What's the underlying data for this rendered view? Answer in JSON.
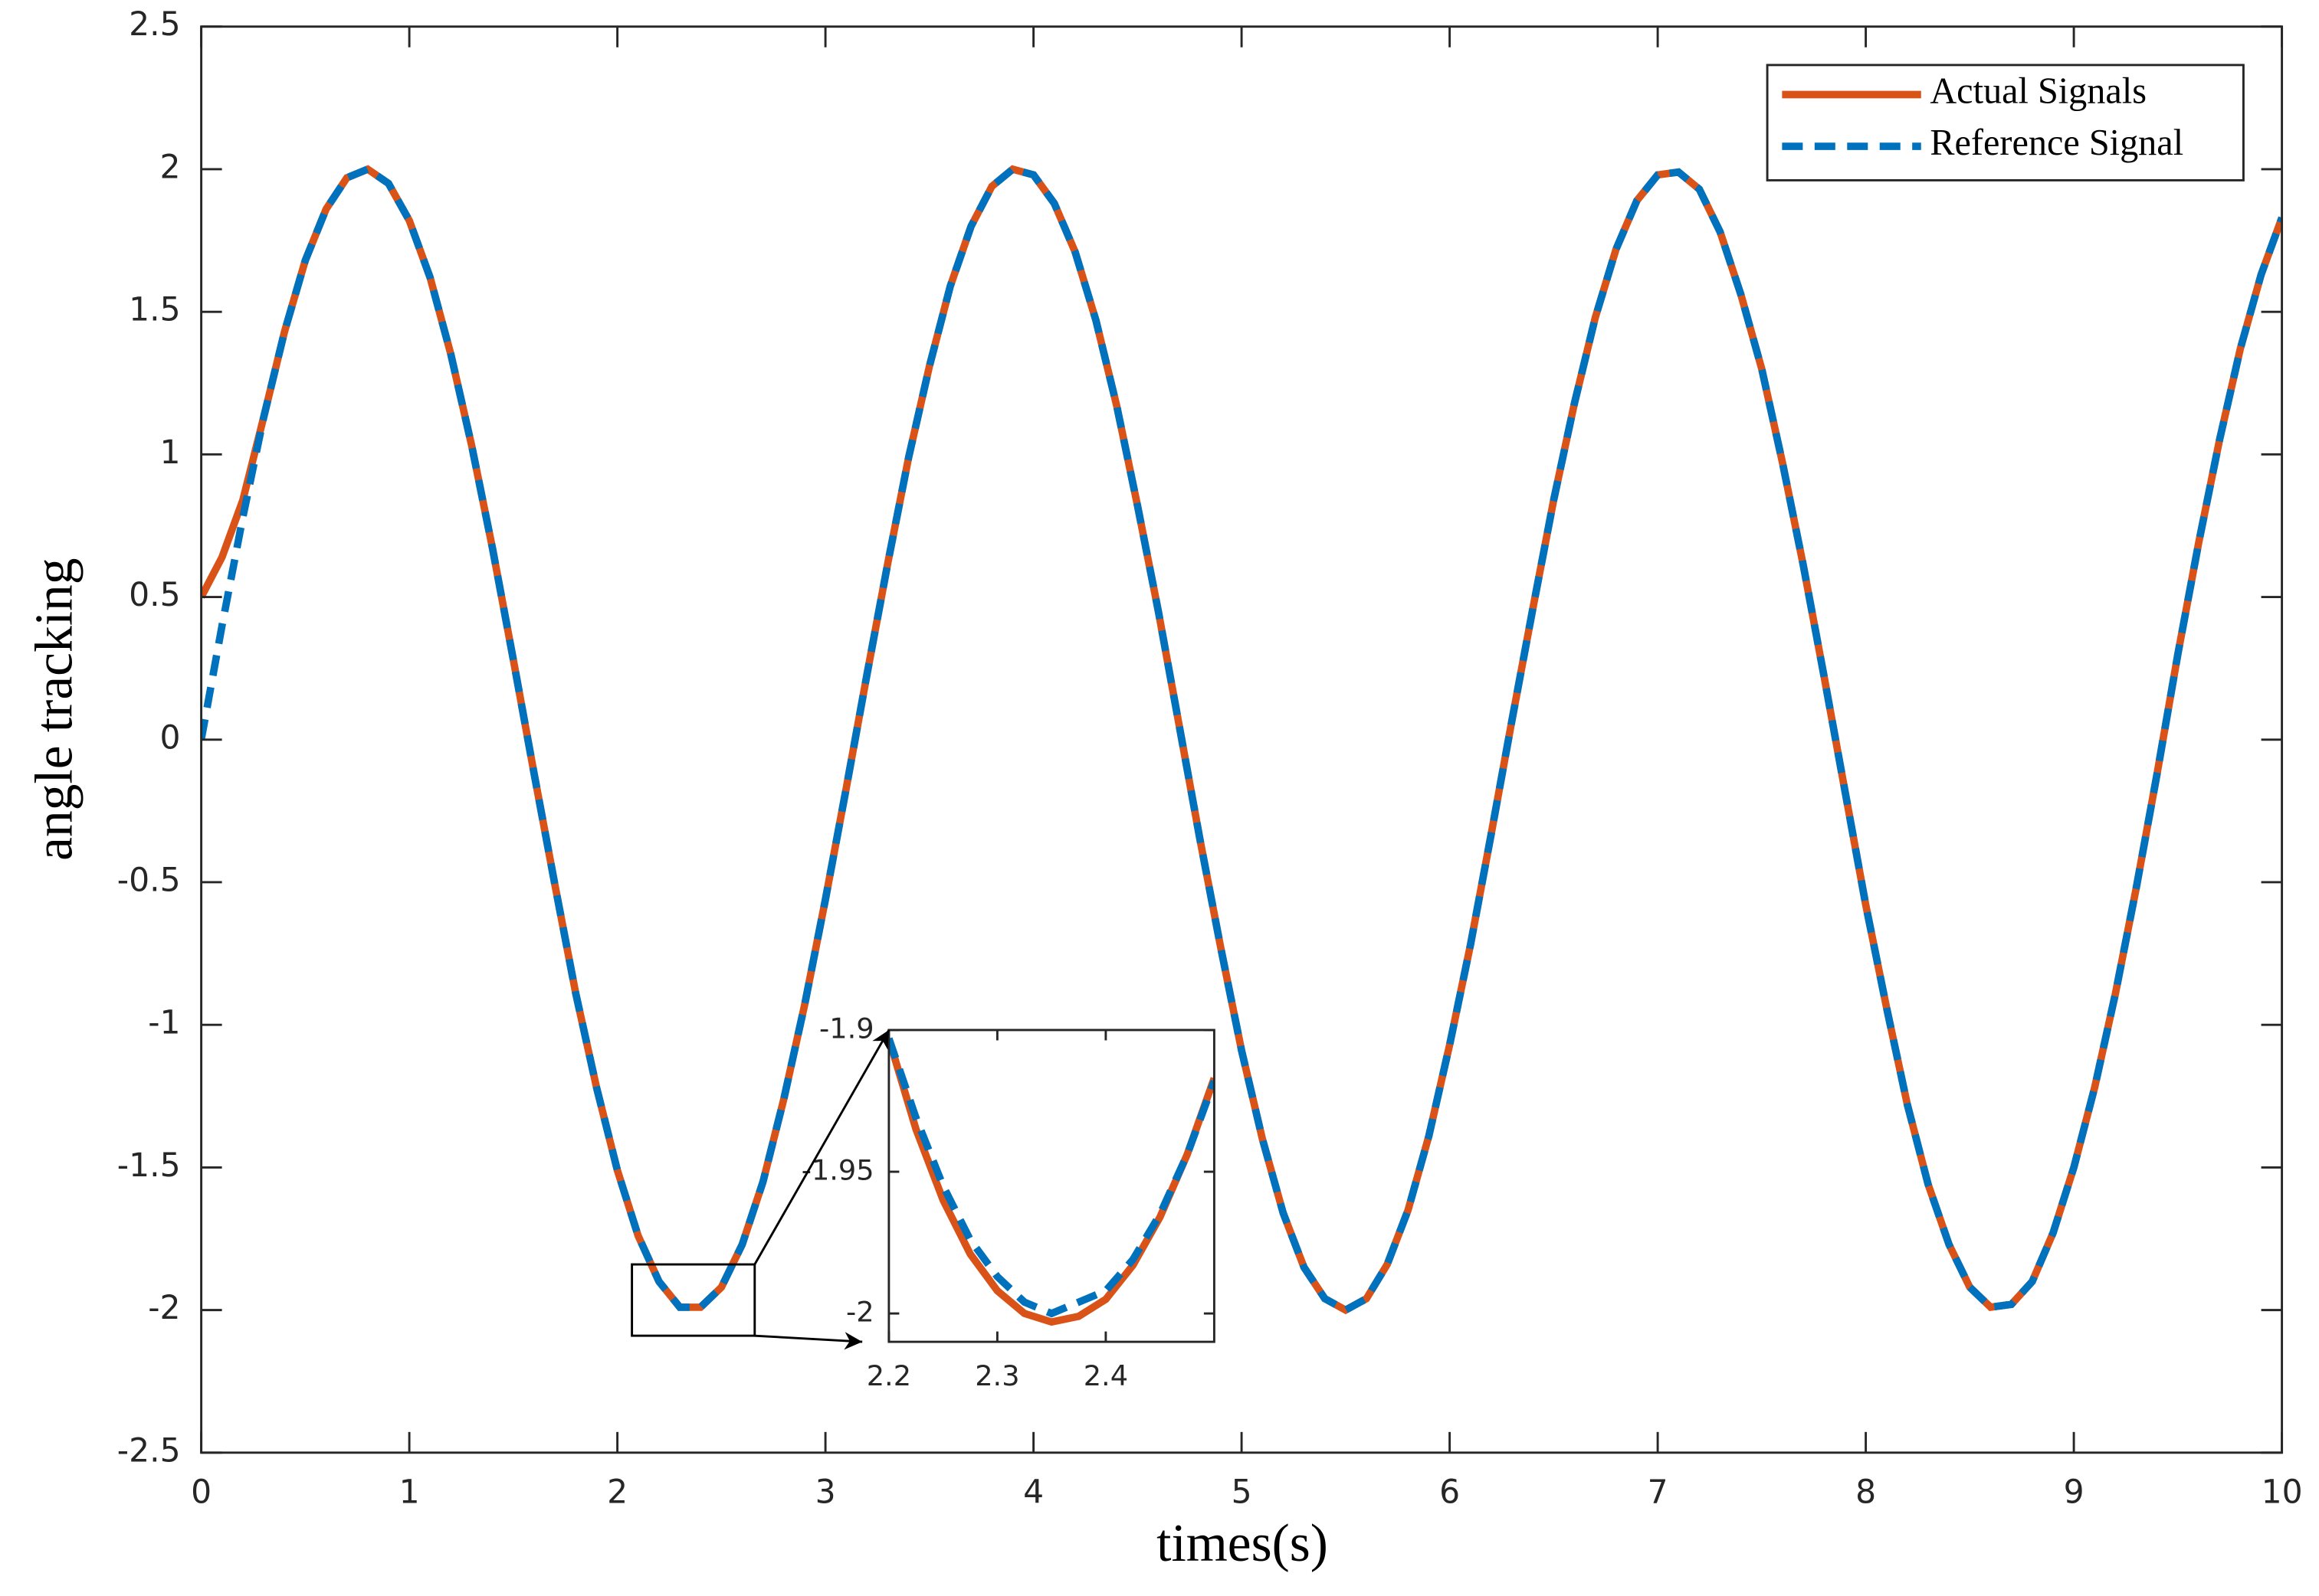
{
  "chart_data": [
    {
      "type": "line",
      "xlabel": "times(s)",
      "ylabel": "angle tracking",
      "x": [
        0,
        0.1,
        0.2,
        0.3,
        0.4,
        0.5,
        0.6,
        0.7,
        0.8,
        0.9,
        1,
        1.1,
        1.2,
        1.3,
        1.4,
        1.5,
        1.6,
        1.7,
        1.8,
        1.9,
        2,
        2.1,
        2.2,
        2.3,
        2.4,
        2.5,
        2.6,
        2.7,
        2.8,
        2.9,
        3,
        3.1,
        3.2,
        3.3,
        3.4,
        3.5,
        3.6,
        3.7,
        3.8,
        3.9,
        4,
        4.1,
        4.2,
        4.3,
        4.4,
        4.5,
        4.6,
        4.7,
        4.8,
        4.9,
        5,
        5.1,
        5.2,
        5.3,
        5.4,
        5.5,
        5.6,
        5.7,
        5.8,
        5.9,
        6,
        6.1,
        6.2,
        6.3,
        6.4,
        6.5,
        6.6,
        6.7,
        6.8,
        6.9,
        7,
        7.1,
        7.2,
        7.3,
        7.4,
        7.5,
        7.6,
        7.7,
        7.8,
        7.9,
        8,
        8.1,
        8.2,
        8.3,
        8.4,
        8.5,
        8.6,
        8.7,
        8.8,
        8.9,
        9,
        9.1,
        9.2,
        9.3,
        9.4,
        9.5,
        9.6,
        9.7,
        9.8,
        9.9,
        10
      ],
      "series": [
        {
          "name": "Actual Signals",
          "color": "#d95319",
          "style": "solid",
          "values": [
            0.5,
            0.64,
            0.84,
            1.13,
            1.43,
            1.68,
            1.86,
            1.97,
            2.0,
            1.95,
            1.82,
            1.62,
            1.35,
            1.03,
            0.67,
            0.28,
            -0.12,
            -0.51,
            -0.89,
            -1.22,
            -1.51,
            -1.74,
            -1.9,
            -1.99,
            -1.99,
            -1.92,
            -1.77,
            -1.55,
            -1.26,
            -0.93,
            -0.56,
            -0.17,
            0.23,
            0.62,
            0.99,
            1.31,
            1.59,
            1.8,
            1.94,
            2.0,
            1.98,
            1.88,
            1.71,
            1.47,
            1.17,
            0.82,
            0.45,
            0.05,
            -0.35,
            -0.73,
            -1.09,
            -1.4,
            -1.66,
            -1.85,
            -1.96,
            -2.0,
            -1.96,
            -1.84,
            -1.65,
            -1.39,
            -1.07,
            -0.72,
            -0.33,
            0.07,
            0.46,
            0.84,
            1.18,
            1.48,
            1.72,
            1.89,
            1.98,
            1.99,
            1.93,
            1.78,
            1.56,
            1.3,
            0.97,
            0.61,
            0.22,
            -0.18,
            -0.58,
            -0.94,
            -1.28,
            -1.56,
            -1.77,
            -1.92,
            -1.99,
            -1.98,
            -1.9,
            -1.73,
            -1.5,
            -1.22,
            -0.89,
            -0.52,
            -0.12,
            0.3,
            0.69,
            1.05,
            1.37,
            1.63,
            1.83
          ]
        },
        {
          "name": "Reference Signal",
          "color": "#0072bd",
          "style": "dashed",
          "values": [
            0,
            0.4,
            0.78,
            1.13,
            1.43,
            1.68,
            1.86,
            1.97,
            2.0,
            1.95,
            1.82,
            1.62,
            1.35,
            1.03,
            0.67,
            0.28,
            -0.12,
            -0.51,
            -0.89,
            -1.22,
            -1.51,
            -1.74,
            -1.9,
            -1.99,
            -1.99,
            -1.92,
            -1.77,
            -1.55,
            -1.26,
            -0.93,
            -0.56,
            -0.17,
            0.23,
            0.62,
            0.99,
            1.31,
            1.59,
            1.8,
            1.94,
            2.0,
            1.98,
            1.88,
            1.71,
            1.47,
            1.17,
            0.82,
            0.45,
            0.05,
            -0.35,
            -0.73,
            -1.09,
            -1.4,
            -1.66,
            -1.85,
            -1.96,
            -2.0,
            -1.96,
            -1.84,
            -1.65,
            -1.39,
            -1.07,
            -0.72,
            -0.33,
            0.07,
            0.46,
            0.84,
            1.18,
            1.48,
            1.72,
            1.89,
            1.98,
            1.99,
            1.93,
            1.78,
            1.56,
            1.3,
            0.97,
            0.61,
            0.22,
            -0.18,
            -0.58,
            -0.94,
            -1.28,
            -1.56,
            -1.77,
            -1.92,
            -1.99,
            -1.98,
            -1.9,
            -1.73,
            -1.5,
            -1.22,
            -0.89,
            -0.52,
            -0.12,
            0.3,
            0.69,
            1.05,
            1.37,
            1.63,
            1.83
          ]
        }
      ],
      "xlim": [
        0,
        10
      ],
      "ylim": [
        -2.5,
        2.5
      ],
      "xticks": [
        0,
        1,
        2,
        3,
        4,
        5,
        6,
        7,
        8,
        9,
        10
      ],
      "yticks": [
        -2.5,
        -2,
        -1.5,
        -1,
        -0.5,
        0,
        0.5,
        1,
        1.5,
        2,
        2.5
      ],
      "legend": "upper right",
      "zoom_box": {
        "xlim": [
          2.07,
          2.66
        ],
        "ylim": [
          -2.09,
          -1.84
        ]
      }
    },
    {
      "type": "line",
      "x": [
        2.2,
        2.225,
        2.25,
        2.275,
        2.3,
        2.325,
        2.35,
        2.375,
        2.4,
        2.425,
        2.45,
        2.475,
        2.5
      ],
      "series": [
        {
          "color": "#d95319",
          "style": "solid",
          "values": [
            -1.903,
            -1.935,
            -1.96,
            -1.979,
            -1.992,
            -2.0,
            -2.003,
            -2.001,
            -1.995,
            -1.983,
            -1.966,
            -1.944,
            -1.917
          ]
        },
        {
          "color": "#0072bd",
          "style": "dashed",
          "values": [
            -1.903,
            -1.931,
            -1.955,
            -1.974,
            -1.987,
            -1.996,
            -2.0,
            -1.996,
            -1.992,
            -1.981,
            -1.965,
            -1.944,
            -1.918
          ]
        }
      ],
      "xlim": [
        2.2,
        2.5
      ],
      "ylim": [
        -2.01,
        -1.9
      ],
      "xticks": [
        2.2,
        2.3,
        2.4
      ],
      "yticks": [
        -2,
        -1.95,
        -1.9
      ]
    }
  ]
}
